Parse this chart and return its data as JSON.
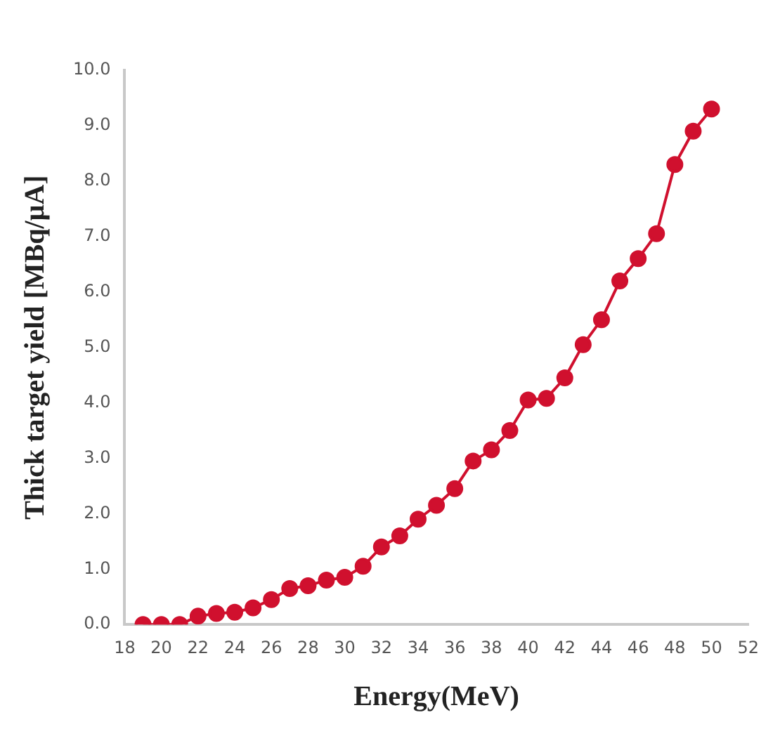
{
  "chart_data": {
    "type": "line",
    "xlabel": "Energy(MeV)",
    "ylabel": "Thick target yield [MBq/μA]",
    "x": [
      19,
      20,
      21,
      22,
      23,
      24,
      25,
      26,
      27,
      28,
      29,
      30,
      31,
      32,
      33,
      34,
      35,
      36,
      37,
      38,
      39,
      40,
      41,
      42,
      43,
      44,
      45,
      46,
      47,
      48,
      49,
      50
    ],
    "series": [
      {
        "color": "#d0102e",
        "values": [
          0.0,
          0.0,
          0.0,
          0.15,
          0.2,
          0.22,
          0.3,
          0.45,
          0.65,
          0.7,
          0.8,
          0.85,
          1.05,
          1.4,
          1.6,
          1.9,
          2.15,
          2.45,
          2.95,
          3.15,
          3.5,
          4.05,
          4.08,
          4.45,
          5.05,
          5.5,
          6.2,
          6.6,
          7.05,
          8.3,
          8.9,
          9.3
        ]
      }
    ],
    "xlim": [
      18,
      52
    ],
    "xticks": [
      18,
      20,
      22,
      24,
      26,
      28,
      30,
      32,
      34,
      36,
      38,
      40,
      42,
      44,
      46,
      48,
      50,
      52
    ],
    "ylim": [
      0,
      10
    ],
    "yticks": [
      {
        "value": 0,
        "label": "0.0"
      },
      {
        "value": 1,
        "label": "1.0"
      },
      {
        "value": 2,
        "label": "2.0"
      },
      {
        "value": 3,
        "label": "3.0"
      },
      {
        "value": 4,
        "label": "4.0"
      },
      {
        "value": 5,
        "label": "5.0"
      },
      {
        "value": 6,
        "label": "6.0"
      },
      {
        "value": 7,
        "label": "7.0"
      },
      {
        "value": 8,
        "label": "8.0"
      },
      {
        "value": 9,
        "label": "9.0"
      },
      {
        "value": 10,
        "label": "10.0"
      }
    ],
    "grid": false,
    "legend": false,
    "marker": "circle",
    "line_style": "solid"
  }
}
